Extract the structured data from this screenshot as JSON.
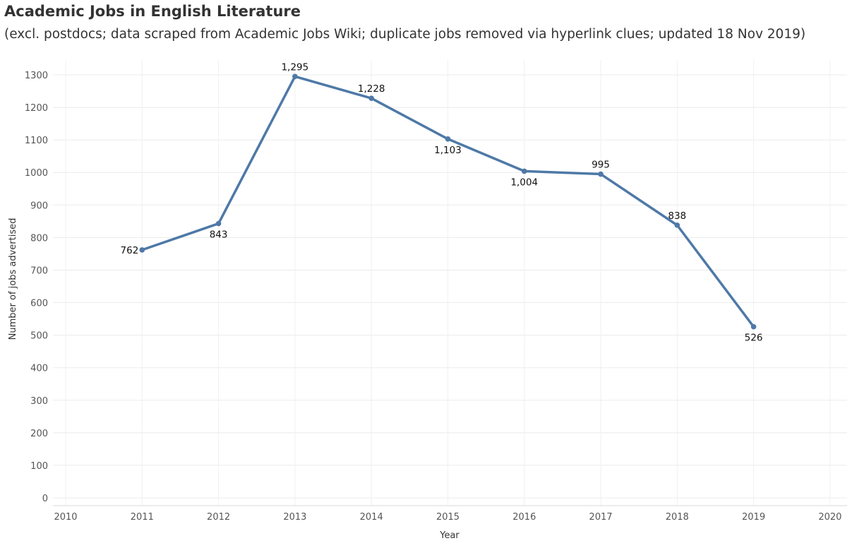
{
  "chart_data": {
    "type": "line",
    "title": "Academic Jobs in English Literature",
    "subtitle": "(excl. postdocs; data scraped from Academic Jobs Wiki; duplicate jobs removed via hyperlink clues; updated 18 Nov 2019)",
    "xlabel": "Year",
    "ylabel": "Number of jobs advertised",
    "xlim": [
      2010,
      2020
    ],
    "ylim": [
      0,
      1300
    ],
    "x_ticks": [
      2010,
      2011,
      2012,
      2013,
      2014,
      2015,
      2016,
      2017,
      2018,
      2019,
      2020
    ],
    "y_ticks": [
      0,
      100,
      200,
      300,
      400,
      500,
      600,
      700,
      800,
      900,
      1000,
      1100,
      1200,
      1300
    ],
    "grid": true,
    "series": [
      {
        "color": "#4e79a7",
        "points": [
          {
            "x": 2011,
            "y": 762,
            "label": "762",
            "label_pos": "left"
          },
          {
            "x": 2012,
            "y": 843,
            "label": "843",
            "label_pos": "below"
          },
          {
            "x": 2013,
            "y": 1295,
            "label": "1,295",
            "label_pos": "above"
          },
          {
            "x": 2014,
            "y": 1228,
            "label": "1,228",
            "label_pos": "above"
          },
          {
            "x": 2015,
            "y": 1103,
            "label": "1,103",
            "label_pos": "below"
          },
          {
            "x": 2016,
            "y": 1004,
            "label": "1,004",
            "label_pos": "below"
          },
          {
            "x": 2017,
            "y": 995,
            "label": "995",
            "label_pos": "above"
          },
          {
            "x": 2018,
            "y": 838,
            "label": "838",
            "label_pos": "above"
          },
          {
            "x": 2019,
            "y": 526,
            "label": "526",
            "label_pos": "below"
          }
        ]
      }
    ]
  }
}
